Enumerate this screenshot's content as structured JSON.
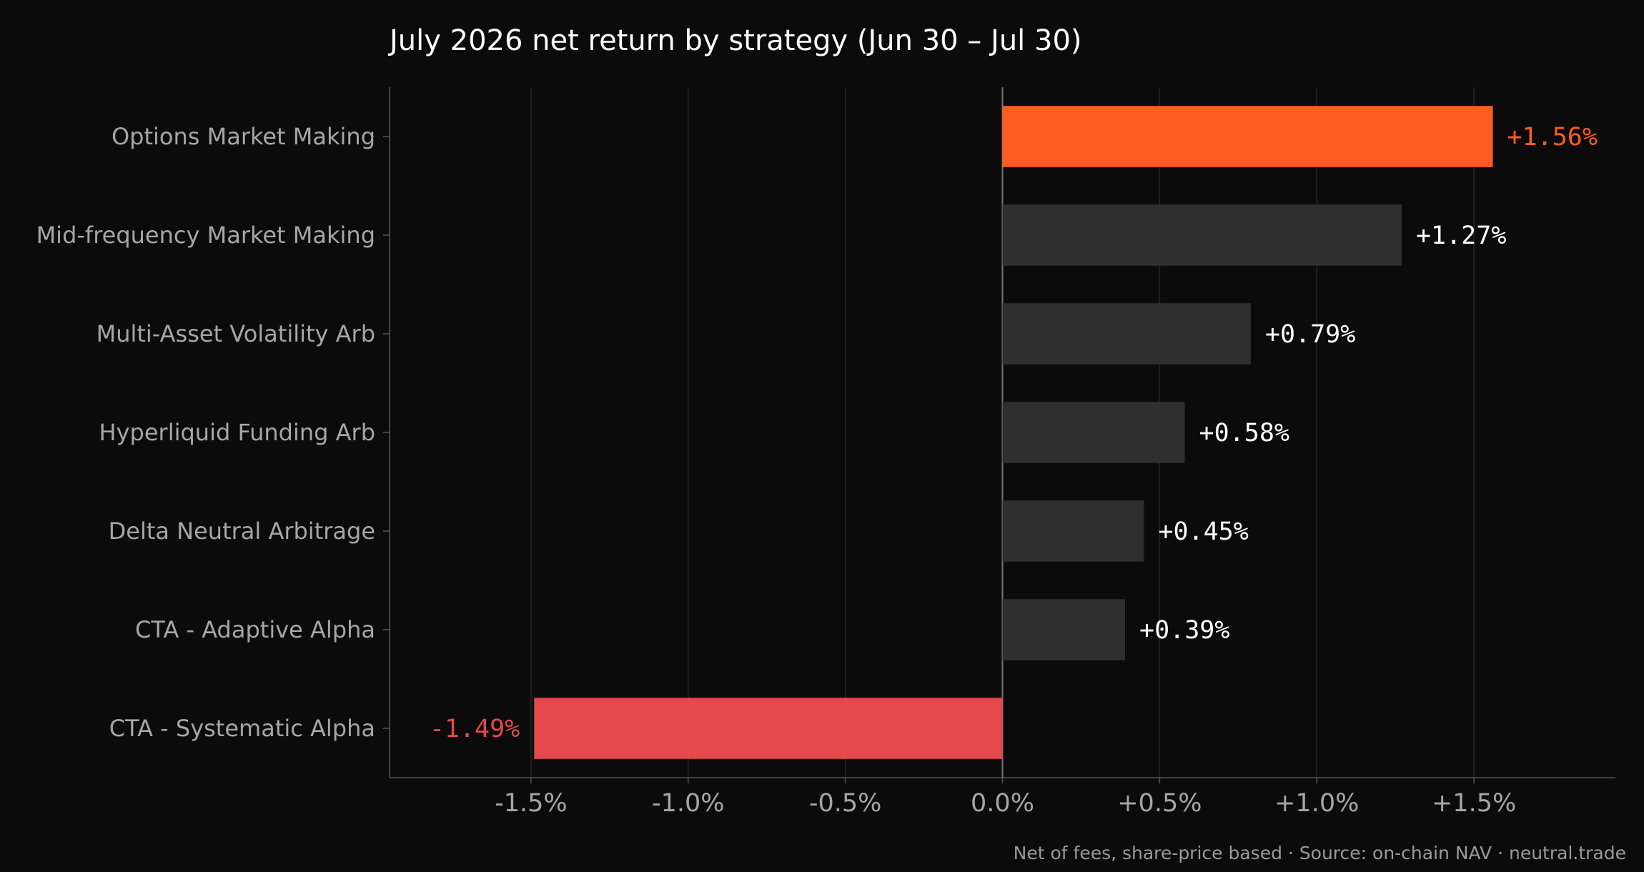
{
  "colors": {
    "background": "#0b0b0b",
    "bar_default": "#2f2f2f",
    "bar_top": "#ff5c1f",
    "bar_negative": "#e5484d",
    "label_default": "#ffffff",
    "axis": "#555555",
    "grid": "#262626",
    "zero_line": "#777777"
  },
  "chart_data": {
    "type": "bar",
    "orientation": "horizontal",
    "title": "July 2026 net return by strategy (Jun 30 – Jul 30)",
    "xlabel": "",
    "ylabel": "",
    "categories": [
      "Options Market Making",
      "Mid-frequency Market Making",
      "Multi-Asset Volatility Arb",
      "Hyperliquid Funding Arb",
      "Delta Neutral Arbitrage",
      "CTA - Adaptive Alpha",
      "CTA - Systematic Alpha"
    ],
    "values": [
      1.56,
      1.27,
      0.79,
      0.58,
      0.45,
      0.39,
      -1.49
    ],
    "value_labels": [
      "+1.56%",
      "+1.27%",
      "+0.79%",
      "+0.58%",
      "+0.45%",
      "+0.39%",
      "-1.49%"
    ],
    "x_ticks": [
      -1.5,
      -1.0,
      -0.5,
      0.0,
      0.5,
      1.0,
      1.5
    ],
    "x_tick_labels": [
      "-1.5%",
      "-1.0%",
      "-0.5%",
      "0.0%",
      "+0.5%",
      "+1.0%",
      "+1.5%"
    ],
    "xlim": [
      -1.95,
      1.95
    ],
    "grid": "vertical",
    "highlight": {
      "top_index": 0,
      "negative_color": "bar_negative"
    }
  },
  "footnote": "Net of fees, share-price based · Source: on-chain NAV · neutral.trade"
}
